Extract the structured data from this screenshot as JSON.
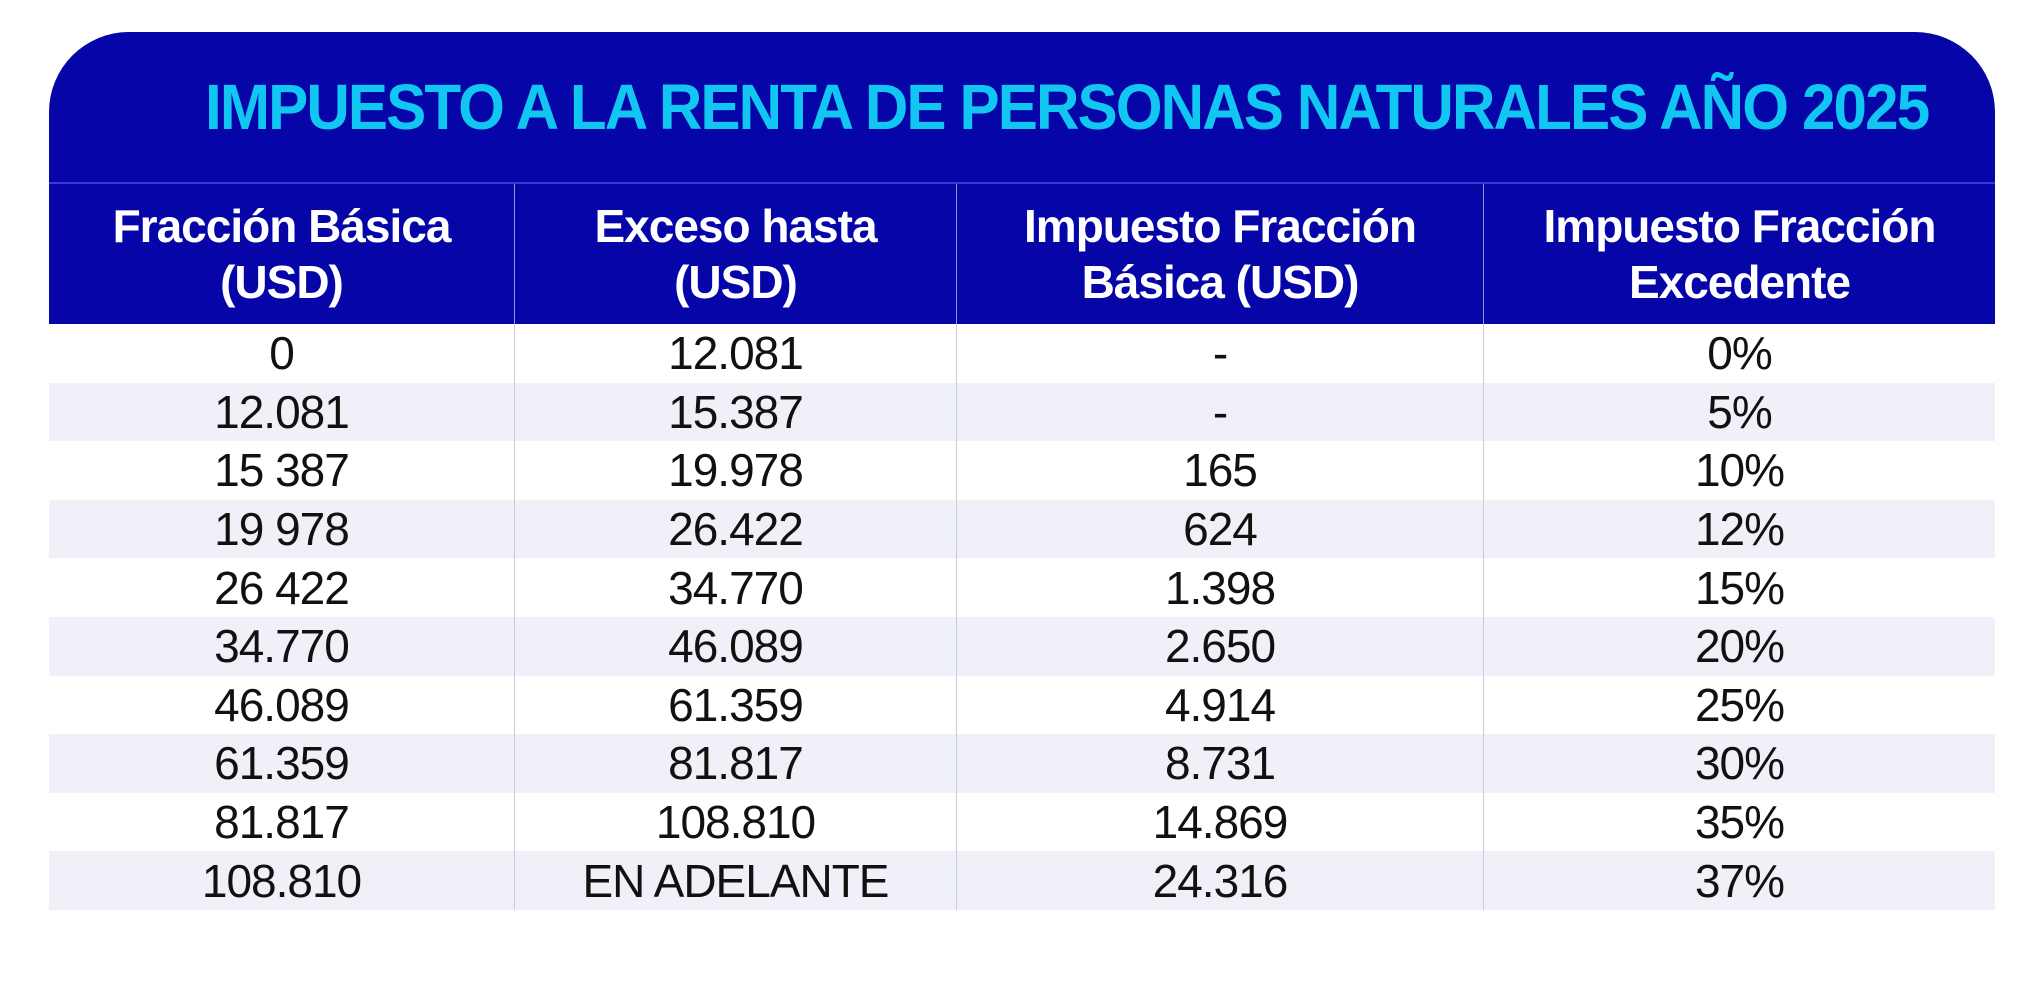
{
  "title": "IMPUESTO A LA RENTA DE PERSONAS NATURALES AÑO 2025",
  "colors": {
    "header_bg": "#0505a8",
    "title_text": "#12c6f2",
    "header_text": "#ffffff",
    "alt_row": "#f0f1f8"
  },
  "table": {
    "headers": [
      "Fracción Básica\n(USD)",
      "Exceso hasta\n(USD)",
      "Impuesto Fracción\nBásica (USD)",
      "Impuesto Fracción\nExcedente"
    ],
    "rows": [
      [
        "0",
        "12.081",
        "-",
        "0%"
      ],
      [
        "12.081",
        "15.387",
        "-",
        "5%"
      ],
      [
        "15 387",
        "19.978",
        "165",
        "10%"
      ],
      [
        "19 978",
        "26.422",
        "624",
        "12%"
      ],
      [
        "26 422",
        "34.770",
        "1.398",
        "15%"
      ],
      [
        "34.770",
        "46.089",
        "2.650",
        "20%"
      ],
      [
        "46.089",
        "61.359",
        "4.914",
        "25%"
      ],
      [
        "61.359",
        "81.817",
        "8.731",
        "30%"
      ],
      [
        "81.817",
        "108.810",
        "14.869",
        "35%"
      ],
      [
        "108.810",
        "EN ADELANTE",
        "24.316",
        "37%"
      ]
    ]
  }
}
